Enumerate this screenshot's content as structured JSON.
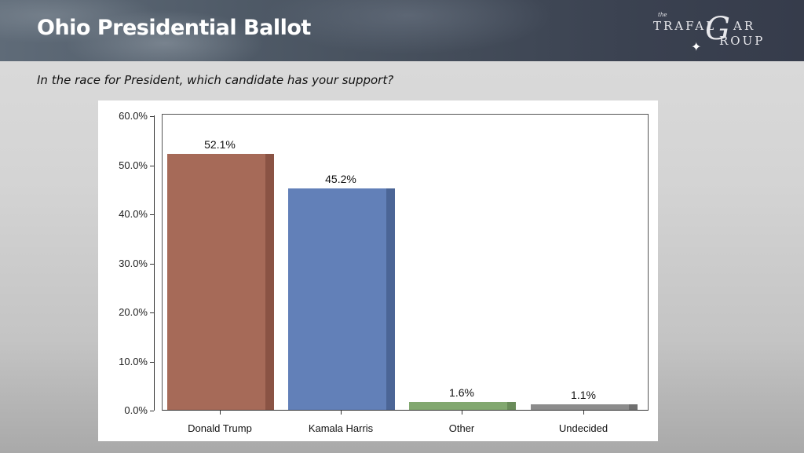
{
  "header": {
    "title": "Ohio Presidential Ballot",
    "logo": {
      "small": "the",
      "line1": "TRAFAL",
      "script_letter": "G",
      "line1_end": "AR",
      "line2": "ROUP",
      "icon": "compass-star-icon"
    }
  },
  "question": "In the race for President, which candidate has your support?",
  "chart_data": {
    "type": "bar",
    "title": "Ohio Presidential Ballot",
    "subtitle": "In the race for President, which candidate has your support?",
    "categories": [
      "Donald Trump",
      "Kamala Harris",
      "Other",
      "Undecided"
    ],
    "values": [
      52.1,
      45.2,
      1.6,
      1.1
    ],
    "value_labels": [
      "52.1%",
      "45.2%",
      "1.6%",
      "1.1%"
    ],
    "colors": [
      "#a66a58",
      "#6280b8",
      "#82a870",
      "#8c8c8c"
    ],
    "shade_colors": [
      "#8a5344",
      "#4b6596",
      "#6a8c5a",
      "#707070"
    ],
    "xlabel": "",
    "ylabel": "",
    "ylim": [
      0,
      60
    ],
    "yticks": [
      "0.0%",
      "10.0%",
      "20.0%",
      "30.0%",
      "40.0%",
      "50.0%",
      "60.0%"
    ],
    "grid": false,
    "legend": "none"
  }
}
